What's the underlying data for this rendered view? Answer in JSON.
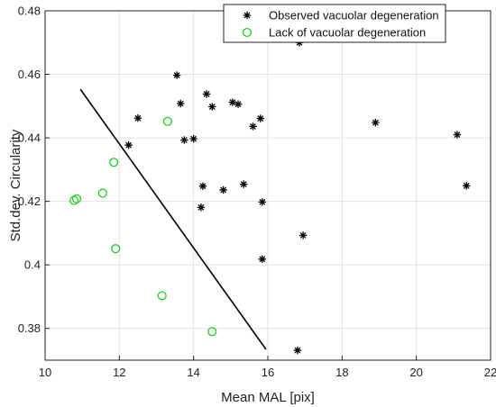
{
  "chart_data": {
    "type": "scatter",
    "title": "",
    "xlabel": "Mean MAL [pix]",
    "ylabel": "Std.dev. Circularity",
    "xlim": [
      10,
      22
    ],
    "ylim": [
      0.37,
      0.48
    ],
    "x_ticks": [
      10,
      12,
      14,
      16,
      18,
      20,
      22
    ],
    "y_ticks": [
      0.38,
      0.4,
      0.42,
      0.44,
      0.46,
      0.48
    ],
    "x_tick_labels": [
      "10",
      "12",
      "14",
      "16",
      "18",
      "20",
      "22"
    ],
    "y_tick_labels": [
      "0.38",
      "0.4",
      "0.42",
      "0.44",
      "0.46",
      "0.48"
    ],
    "grid": true,
    "legend_position": "top-right",
    "series": [
      {
        "name": "Observed vacuolar degeneration",
        "marker": "asterisk",
        "color": "#000000",
        "points": [
          [
            16.85,
            0.47
          ],
          [
            13.55,
            0.4597
          ],
          [
            14.35,
            0.4538
          ],
          [
            13.65,
            0.4508
          ],
          [
            14.5,
            0.4498
          ],
          [
            15.05,
            0.4512
          ],
          [
            15.2,
            0.4506
          ],
          [
            12.5,
            0.4462
          ],
          [
            15.6,
            0.4436
          ],
          [
            15.8,
            0.4461
          ],
          [
            13.75,
            0.4393
          ],
          [
            14.0,
            0.4397
          ],
          [
            12.25,
            0.4377
          ],
          [
            18.9,
            0.4448
          ],
          [
            21.1,
            0.441
          ],
          [
            21.35,
            0.4249
          ],
          [
            14.25,
            0.4248
          ],
          [
            15.35,
            0.4254
          ],
          [
            14.8,
            0.4236
          ],
          [
            15.85,
            0.4198
          ],
          [
            14.2,
            0.4181
          ],
          [
            16.95,
            0.4093
          ],
          [
            15.85,
            0.4018
          ],
          [
            16.8,
            0.3731
          ]
        ]
      },
      {
        "name": "Lack of vacuolar degeneration",
        "marker": "circle",
        "color": "#22cc22",
        "points": [
          [
            13.3,
            0.4452
          ],
          [
            11.85,
            0.4323
          ],
          [
            11.55,
            0.4226
          ],
          [
            10.85,
            0.4208
          ],
          [
            10.78,
            0.4203
          ],
          [
            11.9,
            0.4051
          ],
          [
            13.15,
            0.3903
          ],
          [
            14.5,
            0.379
          ]
        ]
      }
    ],
    "line": {
      "color": "#000000",
      "points": [
        [
          10.95,
          0.4553
        ],
        [
          15.95,
          0.3734
        ]
      ]
    }
  }
}
